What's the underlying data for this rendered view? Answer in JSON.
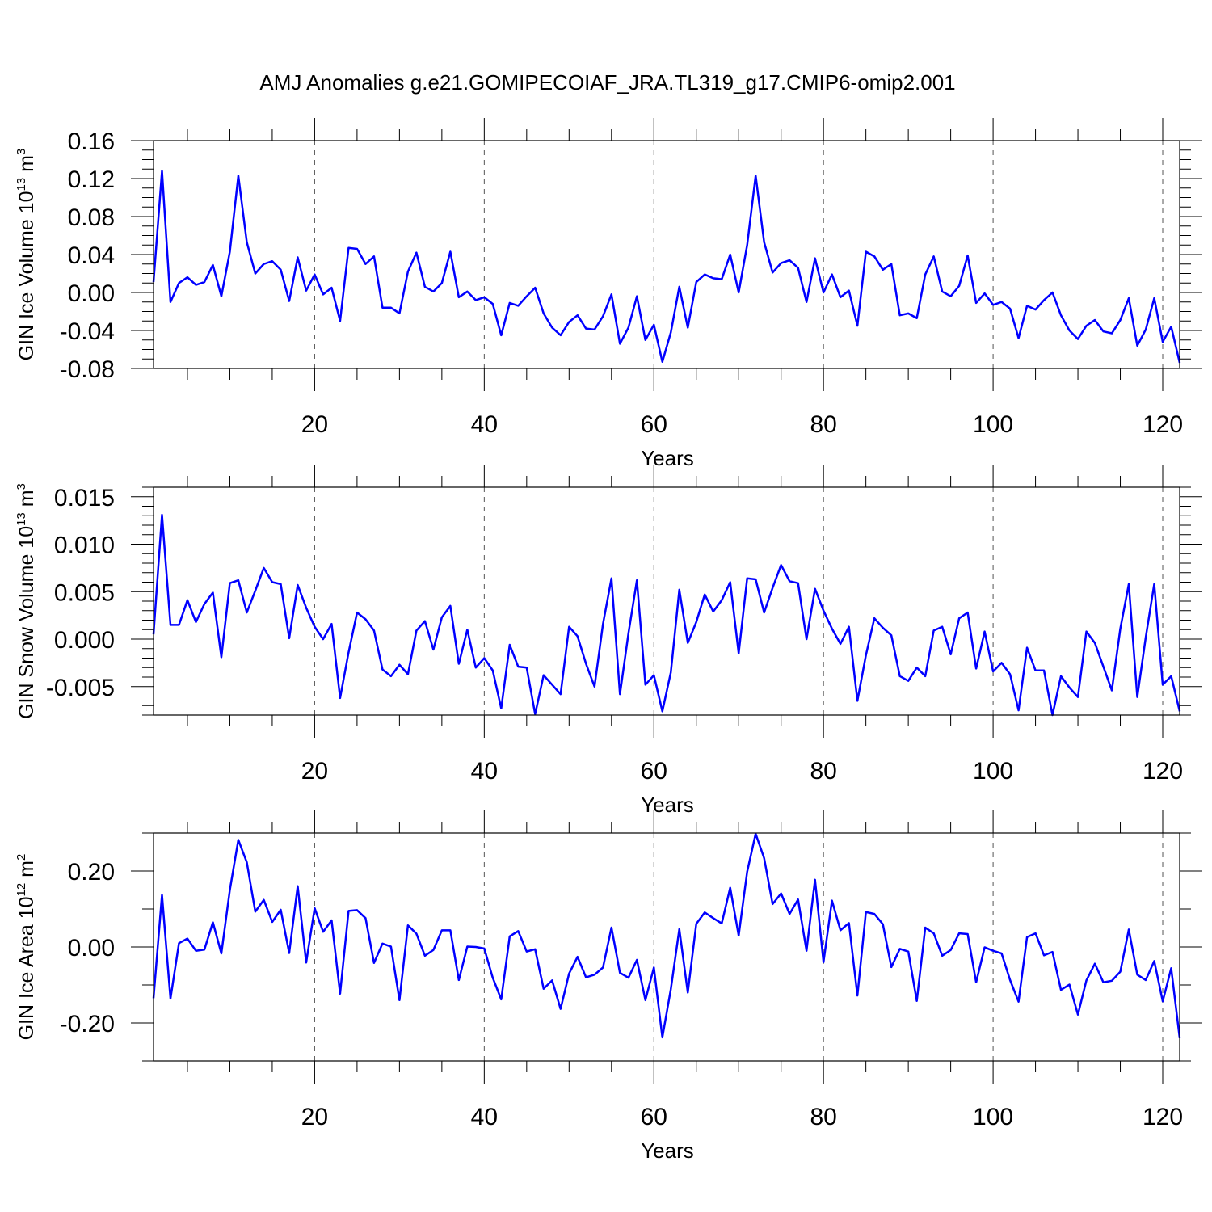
{
  "title": "AMJ Anomalies g.e21.GOMIPECOIAF_JRA.TL319_g17.CMIP6-omip2.001",
  "line_color": "#0000ff",
  "grid_color": "#555555",
  "chart_data": [
    {
      "type": "line",
      "series_name": "GIN Ice Volume",
      "ylabel": "GIN Ice Volume 10",
      "ylabel_exponent": "13",
      "ylabel_unit": "m",
      "ylabel_unit_exponent": "3",
      "xlabel": "Years",
      "xlim": [
        1,
        122
      ],
      "ylim": [
        -0.08,
        0.16
      ],
      "xticks": [
        20,
        40,
        60,
        80,
        100,
        120
      ],
      "xtick_labels": [
        "20",
        "40",
        "60",
        "80",
        "100",
        "120"
      ],
      "yticks": [
        -0.08,
        -0.04,
        0.0,
        0.04,
        0.08,
        0.12,
        0.16
      ],
      "ytick_labels": [
        "-0.08",
        "-0.04",
        "0.00",
        "0.04",
        "0.08",
        "0.12",
        "0.16"
      ],
      "y_minor_step": 0.01,
      "vertical_grid": [
        20,
        40,
        60,
        80,
        100,
        120
      ],
      "x_start": 1,
      "values": [
        0.011,
        0.128,
        -0.01,
        0.01,
        0.016,
        0.008,
        0.011,
        0.029,
        -0.004,
        0.043,
        0.123,
        0.053,
        0.02,
        0.03,
        0.033,
        0.024,
        -0.009,
        0.037,
        0.002,
        0.019,
        -0.002,
        0.005,
        -0.03,
        0.047,
        0.046,
        0.03,
        0.038,
        -0.016,
        -0.016,
        -0.022,
        0.022,
        0.042,
        0.006,
        0.001,
        0.01,
        0.043,
        -0.005,
        0.001,
        -0.008,
        -0.005,
        -0.012,
        -0.045,
        -0.011,
        -0.014,
        -0.004,
        0.005,
        -0.022,
        -0.037,
        -0.045,
        -0.031,
        -0.024,
        -0.038,
        -0.039,
        -0.025,
        -0.002,
        -0.054,
        -0.037,
        -0.004,
        -0.05,
        -0.034,
        -0.073,
        -0.042,
        0.006,
        -0.037,
        0.011,
        0.019,
        0.015,
        0.014,
        0.04,
        0.0,
        0.05,
        0.123,
        0.053,
        0.021,
        0.031,
        0.034,
        0.026,
        -0.01,
        0.036,
        0.0,
        0.019,
        -0.005,
        0.002,
        -0.035,
        0.043,
        0.038,
        0.024,
        0.03,
        -0.024,
        -0.022,
        -0.027,
        0.019,
        0.038,
        0.001,
        -0.004,
        0.007,
        0.039,
        -0.011,
        -0.001,
        -0.013,
        -0.01,
        -0.017,
        -0.048,
        -0.014,
        -0.018,
        -0.008,
        0.0,
        -0.024,
        -0.04,
        -0.049,
        -0.035,
        -0.029,
        -0.041,
        -0.043,
        -0.029,
        -0.006,
        -0.056,
        -0.039,
        -0.006,
        -0.052,
        -0.036,
        -0.074
      ]
    },
    {
      "type": "line",
      "series_name": "GIN Snow Volume",
      "ylabel": "GIN Snow Volume 10",
      "ylabel_exponent": "13",
      "ylabel_unit": "m",
      "ylabel_unit_exponent": "3",
      "xlabel": "Years",
      "xlim": [
        1,
        122
      ],
      "ylim": [
        -0.008,
        0.016
      ],
      "xticks": [
        20,
        40,
        60,
        80,
        100,
        120
      ],
      "xtick_labels": [
        "20",
        "40",
        "60",
        "80",
        "100",
        "120"
      ],
      "yticks": [
        -0.005,
        0.0,
        0.005,
        0.01,
        0.015
      ],
      "ytick_labels": [
        "-0.005",
        "0.000",
        "0.005",
        "0.010",
        "0.015"
      ],
      "y_minor_step": 0.001,
      "vertical_grid": [
        20,
        40,
        60,
        80,
        100,
        120
      ],
      "x_start": 1,
      "values": [
        0.0005,
        0.0131,
        0.0015,
        0.0015,
        0.0041,
        0.0018,
        0.0037,
        0.0049,
        -0.0019,
        0.0059,
        0.0062,
        0.0028,
        0.0051,
        0.0075,
        0.006,
        0.0058,
        0.0001,
        0.0057,
        0.0033,
        0.0013,
        0.0,
        0.0016,
        -0.0062,
        -0.0014,
        0.0028,
        0.0021,
        0.0009,
        -0.0032,
        -0.0039,
        -0.0027,
        -0.0037,
        0.0009,
        0.0019,
        -0.0011,
        0.0023,
        0.0035,
        -0.0026,
        0.001,
        -0.003,
        -0.002,
        -0.0033,
        -0.0073,
        -0.0006,
        -0.0029,
        -0.003,
        -0.0079,
        -0.0038,
        -0.0048,
        -0.0058,
        0.0013,
        0.0003,
        -0.0026,
        -0.005,
        0.0016,
        0.0064,
        -0.0058,
        0.0006,
        0.0062,
        -0.0048,
        -0.0038,
        -0.0076,
        -0.0035,
        0.0052,
        -0.0004,
        0.0018,
        0.0047,
        0.0029,
        0.0041,
        0.006,
        -0.0015,
        0.0064,
        0.0063,
        0.0028,
        0.0054,
        0.0078,
        0.0061,
        0.0059,
        0.0,
        0.0053,
        0.003,
        0.0011,
        -0.0005,
        0.0013,
        -0.0065,
        -0.0017,
        0.0022,
        0.0012,
        0.0004,
        -0.0039,
        -0.0044,
        -0.003,
        -0.0039,
        0.0009,
        0.0013,
        -0.0016,
        0.0022,
        0.0028,
        -0.0031,
        0.0008,
        -0.0034,
        -0.0025,
        -0.0037,
        -0.0075,
        -0.0009,
        -0.0033,
        -0.0033,
        -0.008,
        -0.0039,
        -0.0051,
        -0.0061,
        0.0008,
        -0.0004,
        -0.0029,
        -0.0054,
        0.0011,
        0.0058,
        -0.0061,
        0.0002,
        0.0058,
        -0.0048,
        -0.0039,
        -0.0076
      ]
    },
    {
      "type": "line",
      "series_name": "GIN Ice Area",
      "ylabel": "GIN Ice Area 10",
      "ylabel_exponent": "12",
      "ylabel_unit": "m",
      "ylabel_unit_exponent": "2",
      "xlabel": "Years",
      "xlim": [
        1,
        122
      ],
      "ylim": [
        -0.3,
        0.3
      ],
      "xticks": [
        20,
        40,
        60,
        80,
        100,
        120
      ],
      "xtick_labels": [
        "20",
        "40",
        "60",
        "80",
        "100",
        "120"
      ],
      "yticks": [
        -0.2,
        0.0,
        0.2
      ],
      "ytick_labels": [
        "-0.20",
        "0.00",
        "0.20"
      ],
      "y_minor_step": 0.05,
      "vertical_grid": [
        20,
        40,
        60,
        80,
        100,
        120
      ],
      "x_start": 1,
      "values": [
        -0.135,
        0.137,
        -0.136,
        0.01,
        0.022,
        -0.01,
        -0.007,
        0.065,
        -0.017,
        0.15,
        0.282,
        0.223,
        0.093,
        0.124,
        0.066,
        0.098,
        -0.016,
        0.16,
        -0.041,
        0.102,
        0.04,
        0.07,
        -0.123,
        0.095,
        0.097,
        0.076,
        -0.042,
        0.009,
        0.001,
        -0.14,
        0.057,
        0.035,
        -0.023,
        -0.008,
        0.044,
        0.044,
        -0.087,
        0.001,
        0.0,
        -0.004,
        -0.081,
        -0.138,
        0.028,
        0.042,
        -0.012,
        -0.006,
        -0.11,
        -0.088,
        -0.163,
        -0.07,
        -0.026,
        -0.08,
        -0.073,
        -0.054,
        0.051,
        -0.068,
        -0.081,
        -0.034,
        -0.14,
        -0.054,
        -0.238,
        -0.111,
        0.047,
        -0.12,
        0.061,
        0.091,
        0.076,
        0.062,
        0.156,
        0.03,
        0.198,
        0.298,
        0.234,
        0.113,
        0.141,
        0.087,
        0.125,
        -0.01,
        0.177,
        -0.04,
        0.122,
        0.044,
        0.063,
        -0.128,
        0.092,
        0.087,
        0.06,
        -0.053,
        -0.005,
        -0.012,
        -0.142,
        0.051,
        0.036,
        -0.023,
        -0.008,
        0.036,
        0.034,
        -0.093,
        -0.001,
        -0.01,
        -0.017,
        -0.087,
        -0.144,
        0.026,
        0.036,
        -0.022,
        -0.013,
        -0.113,
        -0.099,
        -0.178,
        -0.088,
        -0.044,
        -0.093,
        -0.089,
        -0.065,
        0.046,
        -0.073,
        -0.087,
        -0.037,
        -0.143,
        -0.056,
        -0.24
      ]
    }
  ]
}
